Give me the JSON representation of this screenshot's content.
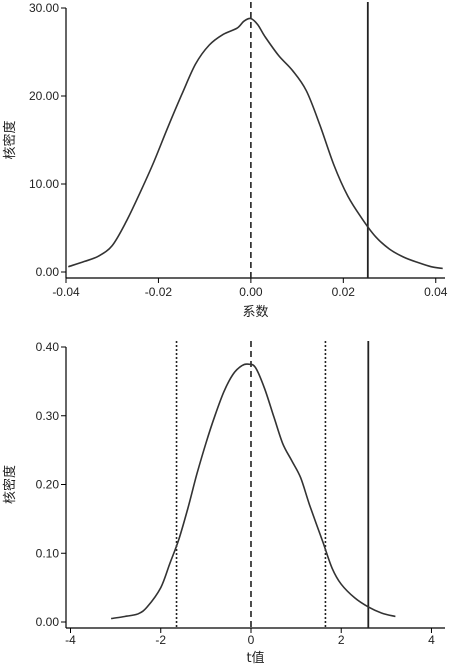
{
  "chart_data": [
    {
      "type": "line",
      "title": "",
      "xlabel": "系数",
      "ylabel": "核密度",
      "xlim": [
        -0.04,
        0.042
      ],
      "ylim": [
        0,
        30
      ],
      "x_ticks": [
        -0.04,
        -0.02,
        0.0,
        0.02,
        0.04
      ],
      "x_tick_labels": [
        "-0.04",
        "-0.02",
        "0.00",
        "0.02",
        "0.04"
      ],
      "y_ticks": [
        0,
        10,
        20,
        30
      ],
      "y_tick_labels": [
        "0.00",
        "10.00",
        "20.00",
        "30.00"
      ],
      "series": [
        {
          "x": [
            -0.0395,
            -0.036,
            -0.033,
            -0.03,
            -0.027,
            -0.024,
            -0.021,
            -0.018,
            -0.015,
            -0.012,
            -0.009,
            -0.006,
            -0.003,
            -0.0015,
            0.0,
            0.0015,
            0.003,
            0.006,
            0.009,
            0.012,
            0.015,
            0.018,
            0.021,
            0.024,
            0.027,
            0.03,
            0.033,
            0.036,
            0.039,
            0.0415
          ],
          "y": [
            0.6,
            1.2,
            1.8,
            3.0,
            5.7,
            9.0,
            12.5,
            16.4,
            20.1,
            23.6,
            25.8,
            27.0,
            27.7,
            28.5,
            28.8,
            28.1,
            26.8,
            24.6,
            22.9,
            20.6,
            16.6,
            12.1,
            8.6,
            6.1,
            4.0,
            2.6,
            1.7,
            1.1,
            0.6,
            0.4
          ]
        }
      ],
      "vlines": [
        {
          "x": 0.0,
          "style": "dashed"
        },
        {
          "x": 0.0253,
          "style": "solid"
        }
      ]
    },
    {
      "type": "line",
      "title": "",
      "xlabel": "t值",
      "ylabel": "核密度",
      "xlim": [
        -4.1,
        4.3
      ],
      "ylim": [
        0,
        0.4
      ],
      "x_ticks": [
        -4,
        -2,
        0,
        2,
        4
      ],
      "x_tick_labels": [
        "-4",
        "-2",
        "0",
        "2",
        "4"
      ],
      "y_ticks": [
        0,
        0.1,
        0.2,
        0.3,
        0.4
      ],
      "y_tick_labels": [
        "0.00",
        "0.10",
        "0.20",
        "0.30",
        "0.40"
      ],
      "series": [
        {
          "x": [
            -3.1,
            -2.8,
            -2.5,
            -2.3,
            -2.0,
            -1.8,
            -1.6,
            -1.4,
            -1.2,
            -1.0,
            -0.8,
            -0.6,
            -0.4,
            -0.2,
            -0.05,
            0.1,
            0.3,
            0.5,
            0.7,
            0.9,
            1.1,
            1.3,
            1.6,
            1.8,
            2.0,
            2.3,
            2.6,
            2.9,
            3.2
          ],
          "y": [
            0.005,
            0.008,
            0.012,
            0.022,
            0.05,
            0.085,
            0.12,
            0.165,
            0.215,
            0.26,
            0.3,
            0.335,
            0.36,
            0.373,
            0.375,
            0.37,
            0.34,
            0.3,
            0.26,
            0.235,
            0.21,
            0.17,
            0.115,
            0.078,
            0.055,
            0.035,
            0.022,
            0.013,
            0.008
          ]
        }
      ],
      "vlines": [
        {
          "x": -1.65,
          "style": "dotted"
        },
        {
          "x": 0.0,
          "style": "dashed"
        },
        {
          "x": 1.65,
          "style": "dotted"
        },
        {
          "x": 2.6,
          "style": "solid"
        }
      ]
    }
  ]
}
